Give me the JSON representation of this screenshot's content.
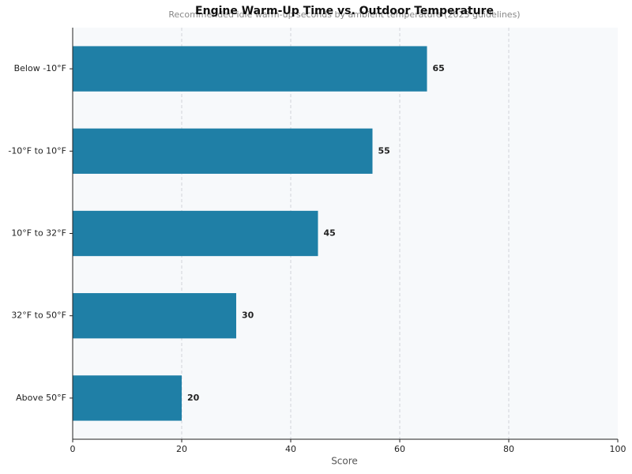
{
  "chart_data": {
    "type": "bar",
    "orientation": "horizontal",
    "title": "Engine Warm-Up Time vs. Outdoor Temperature",
    "subtitle": "Recommended idle warm-up seconds by ambient temperature (2023 guidelines)",
    "x_label": "Score",
    "categories": [
      "Below -10°F",
      "-10°F to 10°F",
      "10°F to 32°F",
      "32°F to 50°F",
      "Above 50°F"
    ],
    "values": [
      65,
      55,
      45,
      30,
      20
    ],
    "color": "#1f7fa6",
    "xlim": [
      0,
      100
    ],
    "xticks": [
      0,
      20,
      40,
      60,
      80,
      100
    ],
    "grid": true
  }
}
